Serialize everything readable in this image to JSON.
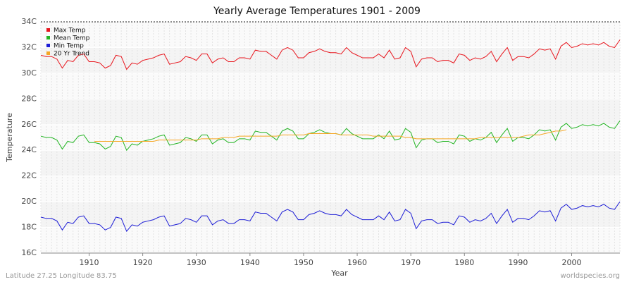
{
  "chart_data": {
    "type": "line",
    "title": "Yearly Average Temperatures 1901 - 2009",
    "x_label": "Year",
    "y_label": "Temperature",
    "footer_left": "Latitude 27.25 Longitude 83.75",
    "footer_right": "worldspecies.org",
    "legend": "top-left",
    "grid": true,
    "xlim": [
      1901,
      2009
    ],
    "xticks": [
      1910,
      1920,
      1930,
      1940,
      1950,
      1960,
      1970,
      1980,
      1990,
      2000
    ],
    "ylim": [
      16,
      34
    ],
    "yticks": [
      {
        "value": 16,
        "label": "16C"
      },
      {
        "value": 18,
        "label": "18C"
      },
      {
        "value": 20,
        "label": "20C"
      },
      {
        "value": 22,
        "label": "22C"
      },
      {
        "value": 24,
        "label": "24C"
      },
      {
        "value": 26,
        "label": "26C"
      },
      {
        "value": 28,
        "label": "28C"
      },
      {
        "value": 30,
        "label": "30C"
      },
      {
        "value": 32,
        "label": "32C"
      },
      {
        "value": 34,
        "label": "34C"
      }
    ],
    "x": [
      1901,
      1902,
      1903,
      1904,
      1905,
      1906,
      1907,
      1908,
      1909,
      1910,
      1911,
      1912,
      1913,
      1914,
      1915,
      1916,
      1917,
      1918,
      1919,
      1920,
      1921,
      1922,
      1923,
      1924,
      1925,
      1926,
      1927,
      1928,
      1929,
      1930,
      1931,
      1932,
      1933,
      1934,
      1935,
      1936,
      1937,
      1938,
      1939,
      1940,
      1941,
      1942,
      1943,
      1944,
      1945,
      1946,
      1947,
      1948,
      1949,
      1950,
      1951,
      1952,
      1953,
      1954,
      1955,
      1956,
      1957,
      1958,
      1959,
      1960,
      1961,
      1962,
      1963,
      1964,
      1965,
      1966,
      1967,
      1968,
      1969,
      1970,
      1971,
      1972,
      1973,
      1974,
      1975,
      1976,
      1977,
      1978,
      1979,
      1980,
      1981,
      1982,
      1983,
      1984,
      1985,
      1986,
      1987,
      1988,
      1989,
      1990,
      1991,
      1992,
      1993,
      1994,
      1995,
      1996,
      1997,
      1998,
      1999,
      2000,
      2001,
      2002,
      2003,
      2004,
      2005,
      2006,
      2007,
      2008,
      2009
    ],
    "series": [
      {
        "name": "Max Temp",
        "color": "#e8141c",
        "values": [
          31.4,
          31.3,
          31.3,
          31.1,
          30.4,
          31.0,
          30.9,
          31.4,
          31.5,
          30.9,
          30.9,
          30.8,
          30.4,
          30.6,
          31.4,
          31.3,
          30.3,
          30.8,
          30.7,
          31.0,
          31.1,
          31.2,
          31.4,
          31.5,
          30.7,
          30.8,
          30.9,
          31.3,
          31.2,
          31.0,
          31.5,
          31.5,
          30.8,
          31.1,
          31.2,
          30.9,
          30.9,
          31.2,
          31.2,
          31.1,
          31.8,
          31.7,
          31.7,
          31.4,
          31.1,
          31.8,
          32.0,
          31.8,
          31.2,
          31.2,
          31.6,
          31.7,
          31.9,
          31.7,
          31.6,
          31.6,
          31.5,
          32.0,
          31.6,
          31.4,
          31.2,
          31.2,
          31.2,
          31.5,
          31.2,
          31.8,
          31.1,
          31.2,
          32.0,
          31.7,
          30.5,
          31.1,
          31.2,
          31.2,
          30.9,
          31.0,
          31.0,
          30.8,
          31.5,
          31.4,
          31.0,
          31.2,
          31.1,
          31.3,
          31.7,
          30.9,
          31.5,
          32.0,
          31.0,
          31.3,
          31.3,
          31.2,
          31.5,
          31.9,
          31.8,
          31.9,
          31.1,
          32.1,
          32.4,
          32.0,
          32.1,
          32.3,
          32.2,
          32.3,
          32.2,
          32.4,
          32.1,
          32.0,
          32.6
        ]
      },
      {
        "name": "Mean Temp",
        "color": "#22b422",
        "values": [
          25.1,
          25.0,
          25.0,
          24.8,
          24.1,
          24.7,
          24.6,
          25.1,
          25.2,
          24.6,
          24.6,
          24.5,
          24.1,
          24.3,
          25.1,
          25.0,
          24.0,
          24.5,
          24.4,
          24.7,
          24.8,
          24.9,
          25.1,
          25.2,
          24.4,
          24.5,
          24.6,
          25.0,
          24.9,
          24.7,
          25.2,
          25.2,
          24.5,
          24.8,
          24.9,
          24.6,
          24.6,
          24.9,
          24.9,
          24.8,
          25.5,
          25.4,
          25.4,
          25.1,
          24.8,
          25.5,
          25.7,
          25.5,
          24.9,
          24.9,
          25.3,
          25.4,
          25.6,
          25.4,
          25.3,
          25.3,
          25.2,
          25.7,
          25.3,
          25.1,
          24.9,
          24.9,
          24.9,
          25.2,
          24.9,
          25.5,
          24.8,
          24.9,
          25.7,
          25.4,
          24.2,
          24.8,
          24.9,
          24.9,
          24.6,
          24.7,
          24.7,
          24.5,
          25.2,
          25.1,
          24.7,
          24.9,
          24.8,
          25.0,
          25.4,
          24.6,
          25.2,
          25.7,
          24.7,
          25.0,
          25.0,
          24.9,
          25.2,
          25.6,
          25.5,
          25.6,
          24.8,
          25.8,
          26.1,
          25.7,
          25.8,
          26.0,
          25.9,
          26.0,
          25.9,
          26.1,
          25.8,
          25.7,
          26.3
        ]
      },
      {
        "name": "Min Temp",
        "color": "#1c1cd6",
        "values": [
          18.8,
          18.7,
          18.7,
          18.5,
          17.8,
          18.4,
          18.3,
          18.8,
          18.9,
          18.3,
          18.3,
          18.2,
          17.8,
          18.0,
          18.8,
          18.7,
          17.7,
          18.2,
          18.1,
          18.4,
          18.5,
          18.6,
          18.8,
          18.9,
          18.1,
          18.2,
          18.3,
          18.7,
          18.6,
          18.4,
          18.9,
          18.9,
          18.2,
          18.5,
          18.6,
          18.3,
          18.3,
          18.6,
          18.6,
          18.5,
          19.2,
          19.1,
          19.1,
          18.8,
          18.5,
          19.2,
          19.4,
          19.2,
          18.6,
          18.6,
          19.0,
          19.1,
          19.3,
          19.1,
          19.0,
          19.0,
          18.9,
          19.4,
          19.0,
          18.8,
          18.6,
          18.6,
          18.6,
          18.9,
          18.6,
          19.2,
          18.5,
          18.6,
          19.4,
          19.1,
          17.9,
          18.5,
          18.6,
          18.6,
          18.3,
          18.4,
          18.4,
          18.2,
          18.9,
          18.8,
          18.4,
          18.6,
          18.5,
          18.7,
          19.1,
          18.3,
          18.9,
          19.4,
          18.4,
          18.7,
          18.7,
          18.6,
          18.9,
          19.3,
          19.2,
          19.3,
          18.5,
          19.5,
          19.8,
          19.4,
          19.5,
          19.7,
          19.6,
          19.7,
          19.6,
          19.8,
          19.5,
          19.4,
          20.0
        ]
      },
      {
        "name": "20 Yr Trend",
        "color": "#f5a623",
        "values": [
          null,
          null,
          null,
          null,
          null,
          null,
          null,
          null,
          null,
          null,
          24.7,
          24.7,
          24.7,
          24.7,
          24.7,
          24.7,
          24.7,
          24.7,
          24.7,
          24.7,
          24.7,
          24.7,
          24.8,
          24.8,
          24.8,
          24.8,
          24.8,
          24.8,
          24.8,
          24.8,
          24.9,
          24.9,
          24.9,
          24.9,
          25.0,
          25.0,
          25.0,
          25.1,
          25.1,
          25.1,
          25.1,
          25.1,
          25.1,
          25.1,
          25.1,
          25.2,
          25.2,
          25.2,
          25.2,
          25.2,
          25.3,
          25.3,
          25.3,
          25.3,
          25.3,
          25.3,
          25.2,
          25.2,
          25.2,
          25.2,
          25.2,
          25.2,
          25.1,
          25.1,
          25.1,
          25.1,
          25.1,
          25.1,
          25.0,
          25.0,
          24.9,
          24.9,
          24.9,
          24.9,
          24.9,
          24.9,
          24.9,
          24.9,
          24.9,
          24.9,
          24.9,
          24.9,
          25.0,
          25.0,
          25.0,
          25.0,
          25.0,
          25.0,
          25.0,
          25.0,
          25.1,
          25.2,
          25.2,
          25.2,
          25.3,
          25.4,
          25.5,
          25.5,
          25.6,
          null,
          null,
          null,
          null,
          null,
          null,
          null,
          null,
          null,
          null
        ]
      }
    ]
  }
}
